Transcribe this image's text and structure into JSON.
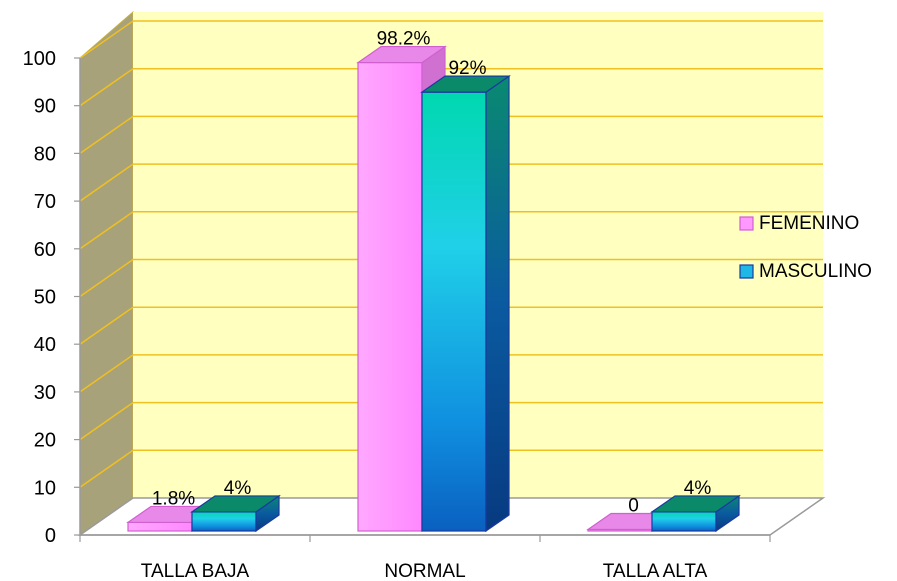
{
  "chart_data": {
    "type": "bar",
    "categories": [
      "TALLA BAJA",
      "NORMAL",
      "TALLA ALTA"
    ],
    "series": [
      {
        "name": "FEMENINO",
        "values": [
          1.8,
          98.2,
          0
        ],
        "labels": [
          "1.8%",
          "98.2%",
          "0"
        ],
        "color": "#ff99ff"
      },
      {
        "name": "MASCULINO",
        "values": [
          4,
          92,
          4
        ],
        "labels": [
          "4%",
          "92%",
          "4%"
        ],
        "color": "#1fb8e6"
      }
    ],
    "yticks": [
      "0",
      "10",
      "20",
      "30",
      "40",
      "50",
      "60",
      "70",
      "80",
      "90",
      "100"
    ],
    "ylim": [
      0,
      100
    ],
    "grid": true,
    "legend_position": "right",
    "colors": {
      "back_wall": "#ffffc0",
      "side_wall": "#a8a27a",
      "gridline": "#f0c020",
      "femenino": "#ff99ff",
      "masculino": "#1fb8e6",
      "masculino_top": "#0b8a6a"
    }
  }
}
